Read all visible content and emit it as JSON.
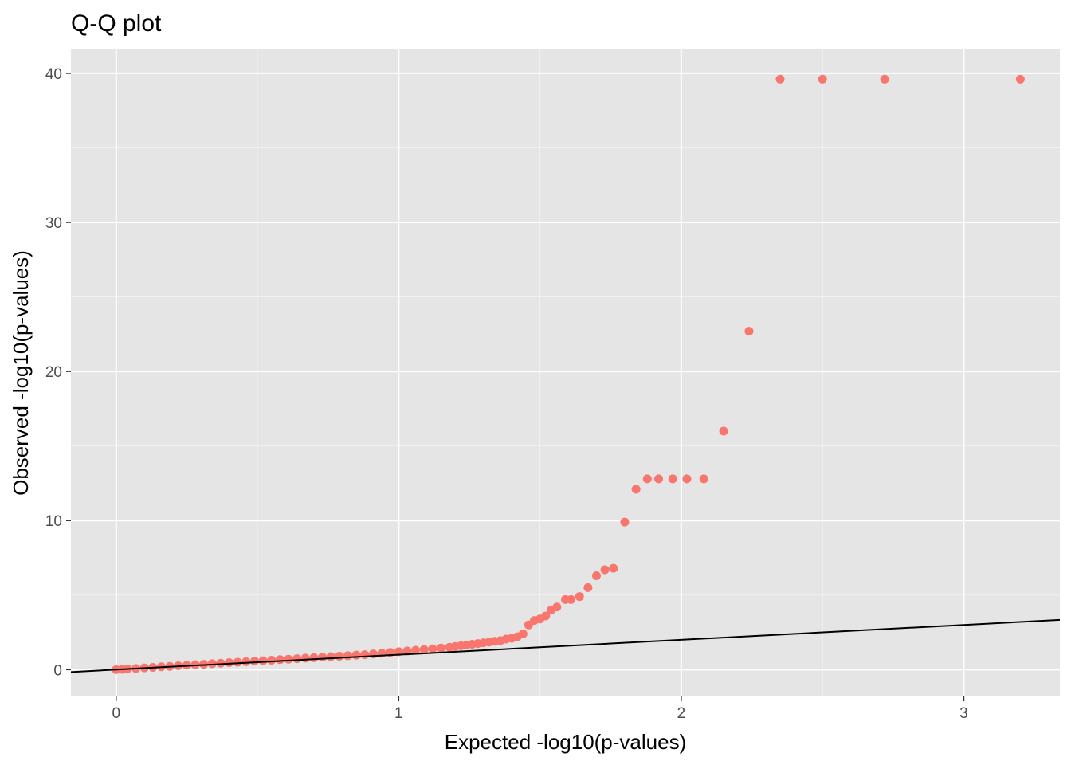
{
  "chart_data": {
    "type": "scatter",
    "title": "Q-Q plot",
    "xlabel": "Expected -log10(p-values)",
    "ylabel": "Observed -log10(p-values)",
    "xlim": [
      -0.16,
      3.34
    ],
    "ylim": [
      -1.8,
      41.6
    ],
    "x_ticks": [
      0,
      1,
      2,
      3
    ],
    "y_ticks": [
      0,
      10,
      20,
      30,
      40
    ],
    "x_tick_labels": [
      "0",
      "1",
      "2",
      "3"
    ],
    "y_tick_labels": [
      "0",
      "10",
      "20",
      "30",
      "40"
    ],
    "grid": true,
    "legend": "none",
    "reference_line": {
      "slope": 1,
      "intercept": 0,
      "color": "#000000"
    },
    "point_color": "#F8766D",
    "panel_color": "#E5E5E5",
    "series": [
      {
        "points": [
          [
            3.2,
            39.6
          ],
          [
            2.72,
            39.6
          ],
          [
            2.5,
            39.6
          ],
          [
            2.35,
            39.6
          ],
          [
            2.24,
            22.7
          ],
          [
            2.15,
            16.0
          ],
          [
            2.08,
            12.8
          ],
          [
            2.02,
            12.8
          ],
          [
            1.97,
            12.8
          ],
          [
            1.92,
            12.8
          ],
          [
            1.88,
            12.8
          ],
          [
            1.84,
            12.1
          ],
          [
            1.8,
            9.9
          ],
          [
            1.76,
            6.8
          ],
          [
            1.73,
            6.7
          ],
          [
            1.7,
            6.3
          ],
          [
            1.67,
            5.5
          ],
          [
            1.64,
            4.9
          ],
          [
            1.61,
            4.7
          ],
          [
            1.59,
            4.7
          ],
          [
            1.56,
            4.2
          ],
          [
            1.54,
            4.0
          ],
          [
            1.52,
            3.6
          ],
          [
            1.5,
            3.4
          ],
          [
            1.48,
            3.3
          ],
          [
            1.46,
            3.0
          ],
          [
            1.44,
            2.4
          ],
          [
            1.42,
            2.2
          ],
          [
            1.4,
            2.1
          ],
          [
            1.38,
            2.05
          ],
          [
            1.36,
            1.95
          ],
          [
            1.34,
            1.9
          ],
          [
            1.32,
            1.85
          ],
          [
            1.3,
            1.8
          ],
          [
            1.28,
            1.75
          ],
          [
            1.26,
            1.7
          ],
          [
            1.24,
            1.65
          ],
          [
            1.22,
            1.6
          ],
          [
            1.2,
            1.55
          ],
          [
            1.18,
            1.5
          ],
          [
            1.15,
            1.45
          ],
          [
            1.12,
            1.4
          ],
          [
            1.09,
            1.35
          ],
          [
            1.06,
            1.3
          ],
          [
            1.03,
            1.25
          ],
          [
            1.0,
            1.2
          ],
          [
            0.97,
            1.15
          ],
          [
            0.94,
            1.1
          ],
          [
            0.91,
            1.05
          ],
          [
            0.88,
            1.0
          ],
          [
            0.85,
            0.97
          ],
          [
            0.82,
            0.93
          ],
          [
            0.79,
            0.9
          ],
          [
            0.76,
            0.87
          ],
          [
            0.73,
            0.84
          ],
          [
            0.7,
            0.8
          ],
          [
            0.67,
            0.77
          ],
          [
            0.64,
            0.73
          ],
          [
            0.61,
            0.7
          ],
          [
            0.58,
            0.67
          ],
          [
            0.55,
            0.63
          ],
          [
            0.52,
            0.6
          ],
          [
            0.49,
            0.57
          ],
          [
            0.46,
            0.53
          ],
          [
            0.43,
            0.5
          ],
          [
            0.4,
            0.47
          ],
          [
            0.37,
            0.43
          ],
          [
            0.34,
            0.4
          ],
          [
            0.31,
            0.36
          ],
          [
            0.28,
            0.33
          ],
          [
            0.25,
            0.29
          ],
          [
            0.22,
            0.26
          ],
          [
            0.19,
            0.22
          ],
          [
            0.16,
            0.19
          ],
          [
            0.13,
            0.15
          ],
          [
            0.1,
            0.12
          ],
          [
            0.07,
            0.08
          ],
          [
            0.04,
            0.05
          ],
          [
            0.02,
            0.02
          ],
          [
            0.0,
            0.0
          ]
        ]
      }
    ]
  }
}
